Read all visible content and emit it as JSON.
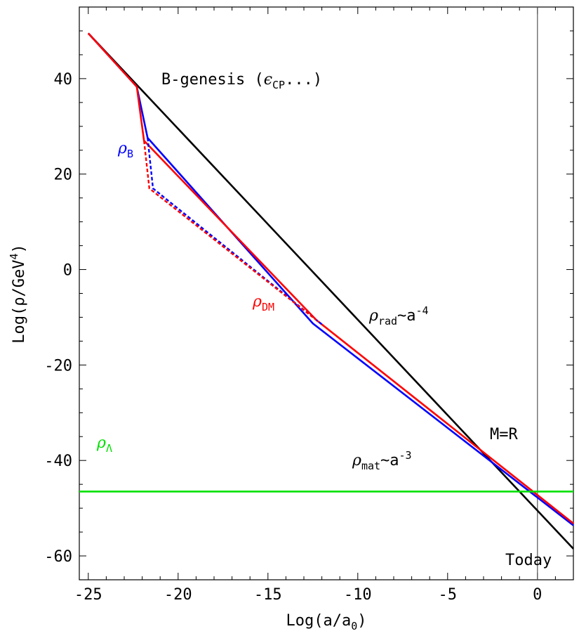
{
  "chart_data": {
    "type": "line",
    "title": "",
    "xlabel": "Log(a/a",
    "xlabel_sub": "0",
    "xlabel_end": ")",
    "ylabel": "Log(ρ/GeV",
    "ylabel_sup": "4",
    "ylabel_end": ")",
    "xlim": [
      -25.5,
      2
    ],
    "ylim": [
      -65,
      55
    ],
    "xticks": [
      -25,
      -20,
      -15,
      -10,
      -5,
      0
    ],
    "xtick_labels": [
      "-25",
      "-20",
      "-15",
      "-10",
      "-5",
      "0"
    ],
    "yticks": [
      -60,
      -40,
      -20,
      0,
      20,
      40
    ],
    "ytick_labels": [
      "-60",
      "-40",
      "-20",
      "0",
      "20",
      "40"
    ],
    "grid": false,
    "reference_line_x": 0,
    "series": [
      {
        "key": "rad",
        "color": "#000000",
        "style": "solid",
        "x": [
          -25,
          2
        ],
        "y": [
          49.5,
          -58.5
        ]
      },
      {
        "key": "baryon",
        "color": "#0000ff",
        "style": "solid",
        "x": [
          -25,
          -22.3,
          -21.7,
          -12.5,
          2
        ],
        "y": [
          49.5,
          38.3,
          27.6,
          -11.3,
          -53.6
        ]
      },
      {
        "key": "dm",
        "color": "#ff0000",
        "style": "solid",
        "x": [
          -25,
          -22.3,
          -21.9,
          -12.3,
          2
        ],
        "y": [
          49.5,
          38.3,
          27.0,
          -10.6,
          -53.2
        ]
      },
      {
        "key": "baryon-dashed",
        "color": "#0000ff",
        "style": "dashed",
        "x": [
          -21.7,
          -21.4,
          -12.0
        ],
        "y": [
          27.6,
          17.0,
          -11.5
        ]
      },
      {
        "key": "dm-dashed",
        "color": "#ff0000",
        "style": "dashed",
        "x": [
          -21.9,
          -21.6,
          -12.3
        ],
        "y": [
          27.0,
          17.0,
          -10.6
        ]
      },
      {
        "key": "lambda",
        "color": "#00e000",
        "style": "solid",
        "x": [
          -25.5,
          2
        ],
        "y": [
          -46.5,
          -46.5
        ]
      }
    ],
    "annotations": {
      "bgenesis": {
        "text": "B-genesis (",
        "symbol": "ϵ",
        "sub": "CP",
        "end": "...)",
        "color": "#000000"
      },
      "rho_b": {
        "symbol": "ρ",
        "sub": "B",
        "color": "#0000ff"
      },
      "rho_dm": {
        "symbol": "ρ",
        "sub": "DM",
        "color": "#ff0000"
      },
      "rho_rad": {
        "symbol": "ρ",
        "sub": "rad",
        "mid": "~a",
        "sup": "-4",
        "color": "#000000"
      },
      "rho_mat": {
        "symbol": "ρ",
        "sub": "mat",
        "mid": "~a",
        "sup": "-3",
        "color": "#000000"
      },
      "rho_lambda": {
        "symbol": "ρ",
        "sub": "Λ",
        "color": "#00e000"
      },
      "mr": {
        "text": "M=R",
        "color": "#000000"
      },
      "today": {
        "text": "Today",
        "color": "#000000"
      }
    }
  }
}
